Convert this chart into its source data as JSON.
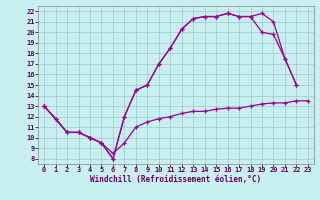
{
  "xlabel": "Windchill (Refroidissement éolien,°C)",
  "background_color": "#c8f0f0",
  "line_color": "#990099",
  "xlim": [
    -0.5,
    23.5
  ],
  "ylim": [
    7.5,
    22.5
  ],
  "xticks": [
    0,
    1,
    2,
    3,
    4,
    5,
    6,
    7,
    8,
    9,
    10,
    11,
    12,
    13,
    14,
    15,
    16,
    17,
    18,
    19,
    20,
    21,
    22,
    23
  ],
  "yticks": [
    8,
    9,
    10,
    11,
    12,
    13,
    14,
    15,
    16,
    17,
    18,
    19,
    20,
    21,
    22
  ],
  "line1_x": [
    0,
    1,
    2,
    3,
    4,
    5,
    6,
    7,
    8,
    9,
    10,
    11,
    12,
    13,
    14,
    15,
    16,
    17,
    18,
    19,
    20,
    21,
    22,
    23
  ],
  "line1_y": [
    13,
    11.8,
    10.5,
    10.5,
    10,
    9.5,
    8.5,
    9.5,
    11,
    11.5,
    11.8,
    12,
    12.3,
    12.5,
    12.5,
    12.7,
    12.8,
    12.8,
    13,
    13.2,
    13.3,
    13.3,
    13.5,
    13.5
  ],
  "line2_x": [
    0,
    1,
    2,
    3,
    4,
    5,
    6,
    7,
    8,
    9,
    10,
    11,
    12,
    13,
    14,
    15,
    16,
    17,
    18,
    19,
    20,
    21,
    22
  ],
  "line2_y": [
    13,
    11.8,
    10.5,
    10.5,
    10,
    9.5,
    8,
    12,
    14.5,
    15,
    17,
    18.5,
    20.3,
    21.3,
    21.5,
    21.5,
    21.8,
    21.5,
    21.5,
    21.8,
    21,
    17.5,
    15
  ],
  "line3_x": [
    0,
    2,
    3,
    4,
    5,
    6,
    7,
    8,
    9,
    10,
    11,
    12,
    13,
    14,
    15,
    16,
    17,
    18,
    19,
    20,
    21,
    22
  ],
  "line3_y": [
    13,
    10.5,
    10.5,
    10,
    9.5,
    8,
    12,
    14.5,
    15,
    17,
    18.5,
    20.3,
    21.3,
    21.5,
    21.5,
    21.8,
    21.5,
    21.5,
    20,
    19.8,
    17.5,
    15
  ],
  "grid_color": "#a0c8c8",
  "marker": "+",
  "markersize": 3,
  "linewidth": 0.9,
  "tick_fontsize": 5,
  "xlabel_fontsize": 5.5
}
